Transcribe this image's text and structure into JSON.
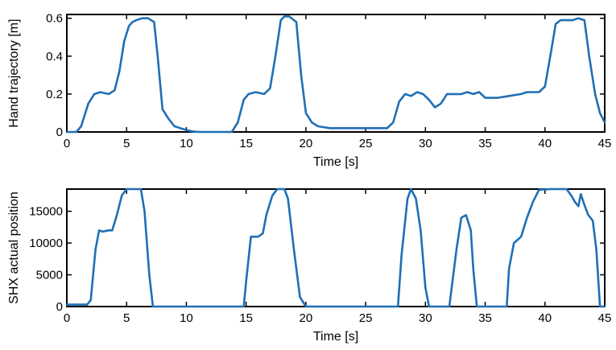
{
  "colors": {
    "series": "#1f6fb4",
    "axis": "#000000"
  },
  "chart_data": [
    {
      "type": "line",
      "xlabel": "Time [s]",
      "ylabel": "Hand trajectory [m]",
      "xlim": [
        0,
        45
      ],
      "ylim": [
        0,
        0.62
      ],
      "xticks": [
        0,
        5,
        10,
        15,
        20,
        25,
        30,
        35,
        40,
        45
      ],
      "yticks": [
        0,
        0.2,
        0.4,
        0.6
      ],
      "ytick_labels": [
        "0",
        "0.2",
        "0.4",
        "0.6"
      ],
      "grid": false,
      "x": [
        0,
        0.8,
        1.2,
        1.8,
        2.3,
        2.8,
        3.5,
        4.0,
        4.4,
        4.8,
        5.2,
        5.5,
        5.8,
        6.3,
        6.8,
        7.3,
        7.6,
        8.0,
        8.5,
        9.0,
        9.5,
        10.0,
        10.5,
        11.0,
        12.0,
        13.0,
        13.8,
        14.3,
        14.8,
        15.2,
        15.8,
        16.5,
        17.0,
        17.5,
        17.9,
        18.2,
        18.6,
        19.2,
        19.6,
        20.0,
        20.5,
        21.0,
        21.5,
        22.0,
        23.0,
        24.0,
        25.0,
        26.0,
        26.8,
        27.3,
        27.8,
        28.3,
        28.8,
        29.3,
        29.8,
        30.3,
        30.8,
        31.3,
        31.8,
        32.5,
        33.0,
        33.5,
        34.0,
        34.5,
        35.0,
        36.0,
        37.0,
        38.0,
        38.5,
        39.0,
        39.5,
        40.0,
        40.5,
        40.9,
        41.3,
        41.8,
        42.3,
        42.8,
        43.3,
        43.7,
        44.2,
        44.6,
        45.0
      ],
      "y": [
        0.0,
        0.0,
        0.03,
        0.15,
        0.2,
        0.21,
        0.2,
        0.22,
        0.32,
        0.48,
        0.56,
        0.58,
        0.59,
        0.6,
        0.6,
        0.58,
        0.4,
        0.12,
        0.07,
        0.03,
        0.02,
        0.01,
        0.003,
        0.0,
        0.0,
        0.0,
        0.0,
        0.05,
        0.17,
        0.2,
        0.21,
        0.2,
        0.23,
        0.42,
        0.59,
        0.61,
        0.61,
        0.58,
        0.3,
        0.1,
        0.05,
        0.03,
        0.025,
        0.02,
        0.02,
        0.02,
        0.02,
        0.02,
        0.02,
        0.05,
        0.16,
        0.2,
        0.19,
        0.21,
        0.2,
        0.17,
        0.13,
        0.15,
        0.2,
        0.2,
        0.2,
        0.21,
        0.2,
        0.21,
        0.18,
        0.18,
        0.19,
        0.2,
        0.21,
        0.21,
        0.21,
        0.24,
        0.42,
        0.57,
        0.59,
        0.59,
        0.59,
        0.6,
        0.59,
        0.4,
        0.2,
        0.1,
        0.05
      ]
    },
    {
      "type": "line",
      "xlabel": "Time [s]",
      "ylabel": "SHX actual position",
      "xlim": [
        0,
        45
      ],
      "ylim": [
        0,
        18500
      ],
      "xticks": [
        0,
        5,
        10,
        15,
        20,
        25,
        30,
        35,
        40,
        45
      ],
      "yticks": [
        0,
        5000,
        10000,
        15000
      ],
      "ytick_labels": [
        "0",
        "5000",
        "10000",
        "15000"
      ],
      "grid": false,
      "x": [
        0,
        1.7,
        2.0,
        2.4,
        2.7,
        3.0,
        3.5,
        3.8,
        4.2,
        4.6,
        5.0,
        6.2,
        6.5,
        6.9,
        7.2,
        10.0,
        14.8,
        15.0,
        15.4,
        16.0,
        16.4,
        16.7,
        17.2,
        17.6,
        18.2,
        18.5,
        19.0,
        19.5,
        20.0,
        25.0,
        27.7,
        28.0,
        28.5,
        28.8,
        29.2,
        29.6,
        30.0,
        30.3,
        31.7,
        32.0,
        32.6,
        33.0,
        33.4,
        33.8,
        34.0,
        34.3,
        36.8,
        37.0,
        37.4,
        38.0,
        38.5,
        39.0,
        39.5,
        40.5,
        41.2,
        41.8,
        42.2,
        42.5,
        42.8,
        43.0,
        43.3,
        43.6,
        44.0,
        44.3,
        44.6,
        45.0
      ],
      "y": [
        300,
        300,
        1000,
        9000,
        12000,
        11800,
        12000,
        12000,
        14500,
        17500,
        18500,
        18500,
        15000,
        5000,
        0,
        0,
        0,
        4000,
        11000,
        11000,
        11500,
        14500,
        17500,
        18500,
        18500,
        17000,
        9000,
        1500,
        0,
        0,
        0,
        8000,
        17000,
        18500,
        17000,
        12000,
        3000,
        0,
        0,
        0,
        9000,
        14000,
        14400,
        12000,
        6000,
        0,
        0,
        6000,
        10000,
        11000,
        14000,
        16500,
        18400,
        18500,
        18500,
        18500,
        17500,
        16500,
        15800,
        17700,
        16000,
        14500,
        13500,
        9000,
        0,
        0
      ]
    }
  ]
}
